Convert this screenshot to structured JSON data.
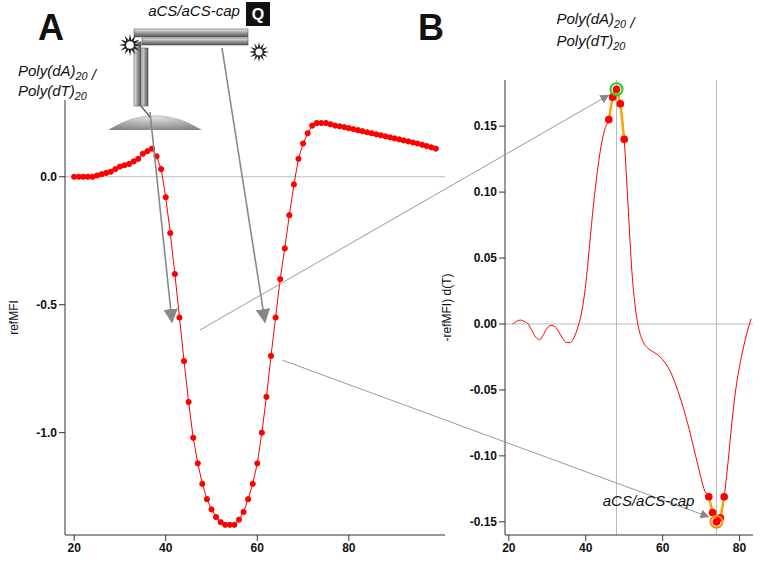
{
  "chart_data": [
    {
      "panel": "A",
      "type": "line",
      "y_label": "refMFI",
      "x": [
        20,
        21,
        22,
        23,
        24,
        25,
        26,
        27,
        28,
        29,
        30,
        31,
        32,
        33,
        34,
        35,
        36,
        37,
        38,
        39,
        40,
        41,
        42,
        43,
        44,
        45,
        46,
        47,
        48,
        49,
        50,
        51,
        52,
        53,
        54,
        55,
        56,
        57,
        58,
        59,
        60,
        61,
        62,
        63,
        64,
        65,
        66,
        67,
        68,
        69,
        70,
        71,
        72,
        73,
        74,
        75,
        76,
        77,
        78,
        79,
        80,
        81,
        82,
        83,
        84,
        85,
        86,
        87,
        88,
        89,
        90,
        91,
        92,
        93,
        94,
        95,
        96,
        97,
        98,
        99
      ],
      "values": [
        0,
        0,
        0,
        0,
        0,
        0.005,
        0.01,
        0.015,
        0.02,
        0.03,
        0.04,
        0.045,
        0.05,
        0.06,
        0.07,
        0.09,
        0.1,
        0.11,
        0.08,
        0.03,
        -0.08,
        -0.22,
        -0.38,
        -0.55,
        -0.72,
        -0.88,
        -1.02,
        -1.12,
        -1.2,
        -1.26,
        -1.3,
        -1.33,
        -1.35,
        -1.36,
        -1.36,
        -1.36,
        -1.34,
        -1.31,
        -1.26,
        -1.2,
        -1.12,
        -1.0,
        -0.86,
        -0.7,
        -0.55,
        -0.4,
        -0.28,
        -0.15,
        -0.03,
        0.07,
        0.13,
        0.17,
        0.2,
        0.21,
        0.21,
        0.21,
        0.205,
        0.2,
        0.197,
        0.194,
        0.19,
        0.186,
        0.182,
        0.178,
        0.174,
        0.17,
        0.166,
        0.162,
        0.158,
        0.154,
        0.15,
        0.146,
        0.142,
        0.138,
        0.134,
        0.13,
        0.125,
        0.12,
        0.115,
        0.11
      ],
      "color": "#ff0000",
      "marker": "circle",
      "line_style": "solid",
      "xlim": [
        18,
        101
      ],
      "xticks": [
        20,
        40,
        60,
        80
      ],
      "ylim": [
        -1.4,
        0.3
      ],
      "yticks": [
        {
          "value": -1,
          "label": "-1.0"
        },
        -0.5,
        {
          "value": 0,
          "label": "0.0"
        }
      ],
      "reference_y": 0,
      "diagram": {
        "top_label": "aCS/aCS-cap",
        "quencher": "Q",
        "strand_label": "Poly(dA)20 / Poly(dT)20"
      }
    },
    {
      "panel": "B",
      "type": "line",
      "y_label": "-refMFI) d(T)",
      "x": [
        21,
        22,
        23,
        24,
        25,
        26,
        27,
        28,
        29,
        30,
        31,
        32,
        33,
        34,
        35,
        36,
        37,
        38,
        39,
        40,
        41,
        42,
        43,
        44,
        45,
        46,
        47,
        48,
        49,
        50,
        51,
        52,
        53,
        54,
        55,
        56,
        57,
        58,
        59,
        60,
        61,
        62,
        63,
        64,
        65,
        66,
        67,
        68,
        69,
        70,
        71,
        72,
        73,
        74,
        75,
        76,
        77,
        78,
        79,
        80,
        81,
        82,
        83
      ],
      "values": [
        0,
        0.002,
        0.003,
        0.002,
        0,
        -0.005,
        -0.01,
        -0.012,
        -0.008,
        -0.003,
        -0.001,
        -0.002,
        -0.006,
        -0.011,
        -0.014,
        -0.014,
        -0.01,
        -0.002,
        0.01,
        0.03,
        0.06,
        0.09,
        0.115,
        0.135,
        0.148,
        0.155,
        0.172,
        0.178,
        0.167,
        0.14,
        0.09,
        0.04,
        0.01,
        -0.006,
        -0.014,
        -0.018,
        -0.02,
        -0.022,
        -0.024,
        -0.027,
        -0.031,
        -0.036,
        -0.043,
        -0.051,
        -0.06,
        -0.07,
        -0.081,
        -0.093,
        -0.105,
        -0.117,
        -0.127,
        -0.131,
        -0.143,
        -0.15,
        -0.147,
        -0.131,
        -0.105,
        -0.075,
        -0.05,
        -0.032,
        -0.018,
        -0.006,
        0.004
      ],
      "color": "#ff0000",
      "line_style": "solid",
      "marked_x": [
        46,
        47,
        48,
        49,
        50,
        72,
        73,
        74,
        75,
        76
      ],
      "marked_color": "#ffa500",
      "xlim": [
        19,
        83.5
      ],
      "xticks": [
        20,
        40,
        60,
        80
      ],
      "ylim": [
        -0.16,
        0.185
      ],
      "yticks": [
        -0.15,
        {
          "value": -0.1,
          "label": "-0.10"
        },
        -0.05,
        {
          "value": 0,
          "label": "0.00"
        },
        0.05,
        {
          "value": 0.1,
          "label": "0.10"
        },
        0.15
      ],
      "reference_y": 0,
      "peaks": [
        {
          "x": 48,
          "value": 0.178,
          "label": "Poly(dA)20 / Poly(dT)20",
          "color": "#22cc22"
        },
        {
          "x": 74,
          "value": -0.15,
          "label": "aCS/aCS-cap",
          "color": "#ff8c00"
        }
      ]
    }
  ]
}
